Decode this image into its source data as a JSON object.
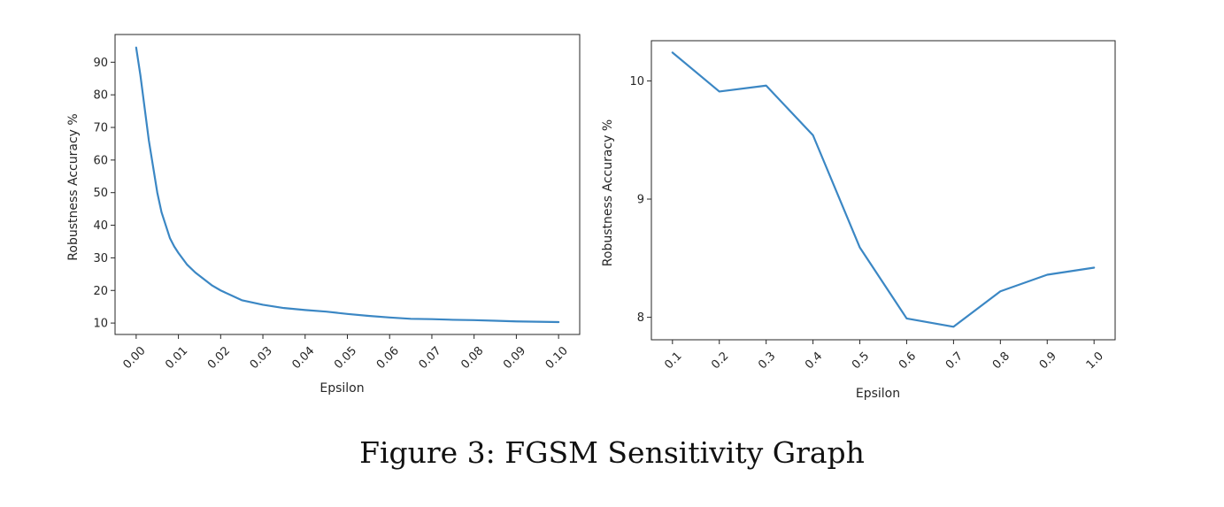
{
  "caption": "Figure 3: FGSM Sensitivity Graph",
  "line_color": "#3b87c4",
  "chart_data": [
    {
      "type": "line",
      "title": "",
      "xlabel": "Epsilon",
      "ylabel": "Robustness Accuracy %",
      "xlim": [
        -0.005,
        0.105
      ],
      "ylim": [
        6.5,
        98.5
      ],
      "xticks": [
        0.0,
        0.01,
        0.02,
        0.03,
        0.04,
        0.05,
        0.06,
        0.07,
        0.08,
        0.09,
        0.1
      ],
      "xtick_labels": [
        "0.00",
        "0.01",
        "0.02",
        "0.03",
        "0.04",
        "0.05",
        "0.06",
        "0.07",
        "0.08",
        "0.09",
        "0.10"
      ],
      "yticks": [
        10,
        20,
        30,
        40,
        50,
        60,
        70,
        80,
        90
      ],
      "ytick_labels": [
        "10",
        "20",
        "30",
        "40",
        "50",
        "60",
        "70",
        "80",
        "90"
      ],
      "grid": false,
      "x": [
        0.0,
        0.001,
        0.002,
        0.003,
        0.004,
        0.005,
        0.006,
        0.007,
        0.008,
        0.009,
        0.01,
        0.012,
        0.014,
        0.016,
        0.018,
        0.02,
        0.025,
        0.03,
        0.035,
        0.04,
        0.045,
        0.05,
        0.055,
        0.06,
        0.065,
        0.07,
        0.075,
        0.08,
        0.085,
        0.09,
        0.095,
        0.1
      ],
      "y": [
        94.5,
        86,
        76,
        66,
        58,
        50,
        44,
        40,
        36,
        33.5,
        31.5,
        28,
        25.5,
        23.5,
        21.5,
        20,
        17,
        15.6,
        14.6,
        14,
        13.5,
        12.8,
        12.2,
        11.7,
        11.3,
        11.2,
        11.0,
        10.9,
        10.7,
        10.5,
        10.4,
        10.3
      ]
    },
    {
      "type": "line",
      "title": "",
      "xlabel": "Epsilon",
      "ylabel": "Robustness Accuracy %",
      "xlim": [
        0.055,
        1.045
      ],
      "ylim": [
        7.81,
        10.34
      ],
      "xticks": [
        0.1,
        0.2,
        0.3,
        0.4,
        0.5,
        0.6,
        0.7,
        0.8,
        0.9,
        1.0
      ],
      "xtick_labels": [
        "0.1",
        "0.2",
        "0.3",
        "0.4",
        "0.5",
        "0.6",
        "0.7",
        "0.8",
        "0.9",
        "1.0"
      ],
      "yticks": [
        8,
        9,
        10
      ],
      "ytick_labels": [
        "8",
        "9",
        "10"
      ],
      "grid": false,
      "x": [
        0.1,
        0.2,
        0.3,
        0.4,
        0.5,
        0.6,
        0.7,
        0.8,
        0.9,
        1.0
      ],
      "y": [
        10.24,
        9.91,
        9.96,
        9.54,
        8.59,
        7.99,
        7.92,
        8.22,
        8.36,
        8.42
      ]
    }
  ]
}
